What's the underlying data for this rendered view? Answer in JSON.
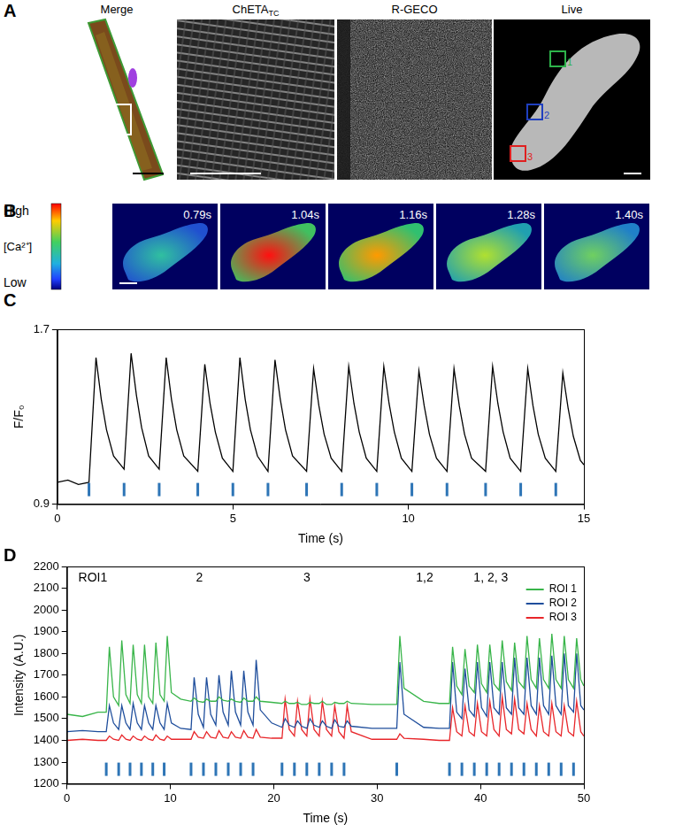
{
  "panels": [
    {
      "label": "A",
      "images": [
        {
          "title": "Merge"
        },
        {
          "title": "ChETA",
          "subscript": "TC"
        },
        {
          "title": "R-GECO"
        },
        {
          "title": "Live",
          "rois": [
            {
              "label": "1",
              "color": "#2db34a"
            },
            {
              "label": "2",
              "color": "#1f3fbf"
            },
            {
              "label": "3",
              "color": "#e02020"
            }
          ]
        }
      ]
    },
    {
      "label": "B",
      "colorbar": {
        "high": "High",
        "title": "[Ca²⁺]",
        "low": "Low"
      },
      "frames": [
        "0.79s",
        "1.04s",
        "1.16s",
        "1.28s",
        "1.40s"
      ]
    }
  ],
  "chart_data": [
    {
      "panel_label": "C",
      "type": "line",
      "x_label": "Time (s)",
      "y_label": "F/F₀",
      "color": "#000000",
      "x": [
        0,
        0.3,
        0.6,
        0.9,
        1.1,
        1.25,
        1.4,
        1.6,
        1.9,
        2.1,
        2.25,
        2.4,
        2.6,
        2.9,
        3.1,
        3.25,
        3.4,
        3.6,
        4.0,
        4.2,
        4.35,
        4.5,
        4.7,
        5.0,
        5.2,
        5.35,
        5.5,
        5.7,
        6.0,
        6.2,
        6.35,
        6.5,
        6.7,
        7.1,
        7.3,
        7.45,
        7.6,
        7.8,
        8.1,
        8.3,
        8.45,
        8.6,
        8.8,
        9.1,
        9.3,
        9.45,
        9.6,
        9.8,
        10.1,
        10.3,
        10.45,
        10.6,
        10.8,
        11.1,
        11.3,
        11.45,
        11.6,
        11.8,
        12.2,
        12.4,
        12.55,
        12.7,
        12.9,
        13.2,
        13.4,
        13.55,
        13.7,
        13.9,
        14.2,
        14.4,
        14.55,
        14.7,
        14.9,
        15.0
      ],
      "values": [
        1.0,
        1.01,
        0.99,
        1.0,
        1.57,
        1.38,
        1.24,
        1.12,
        1.06,
        1.59,
        1.4,
        1.25,
        1.12,
        1.06,
        1.57,
        1.38,
        1.24,
        1.12,
        1.05,
        1.54,
        1.36,
        1.23,
        1.11,
        1.05,
        1.57,
        1.38,
        1.24,
        1.12,
        1.05,
        1.56,
        1.38,
        1.24,
        1.12,
        1.05,
        1.52,
        1.35,
        1.22,
        1.11,
        1.05,
        1.53,
        1.36,
        1.23,
        1.11,
        1.05,
        1.53,
        1.36,
        1.23,
        1.11,
        1.05,
        1.51,
        1.35,
        1.22,
        1.11,
        1.05,
        1.52,
        1.35,
        1.22,
        1.11,
        1.05,
        1.53,
        1.36,
        1.23,
        1.11,
        1.05,
        1.52,
        1.35,
        1.22,
        1.11,
        1.05,
        1.5,
        1.34,
        1.21,
        1.1,
        1.08
      ],
      "xlim": [
        0,
        15
      ],
      "xticks": [
        0,
        5,
        10,
        15
      ],
      "ylim": [
        0.9,
        1.7
      ],
      "yticks": [
        0.9,
        1.7
      ],
      "grid": false,
      "stimuli": {
        "color": "#2e75b6",
        "values": [
          0.9,
          1.9,
          2.9,
          4.0,
          5.0,
          6.0,
          7.1,
          8.1,
          9.1,
          10.1,
          11.1,
          12.2,
          13.2,
          14.2
        ]
      }
    },
    {
      "panel_label": "D",
      "type": "line",
      "x_label": "Time (s)",
      "y_label": "Intensity (A.U.)",
      "x": [
        0,
        1.5,
        3.0,
        3.8,
        4.1,
        4.5,
        5.0,
        5.3,
        5.7,
        6.1,
        6.4,
        6.8,
        7.2,
        7.5,
        7.9,
        8.3,
        8.6,
        9.0,
        9.4,
        9.7,
        10.1,
        11.0,
        12.0,
        12.3,
        12.7,
        13.2,
        13.5,
        13.9,
        14.4,
        14.7,
        15.1,
        15.6,
        15.9,
        16.3,
        16.8,
        17.1,
        17.5,
        18.0,
        18.3,
        18.7,
        19.8,
        20.8,
        21.1,
        21.5,
        22.0,
        22.3,
        22.7,
        23.2,
        23.5,
        23.9,
        24.4,
        24.7,
        25.1,
        25.6,
        25.9,
        26.3,
        26.8,
        27.1,
        27.5,
        29.5,
        31.9,
        32.2,
        32.6,
        34.5,
        36.0,
        37.0,
        37.3,
        37.7,
        38.2,
        38.5,
        38.9,
        39.4,
        39.7,
        40.1,
        40.6,
        40.9,
        41.3,
        41.8,
        42.1,
        42.5,
        43.0,
        43.3,
        43.7,
        44.2,
        44.5,
        44.9,
        45.4,
        45.7,
        46.1,
        46.6,
        46.9,
        47.3,
        47.8,
        48.1,
        48.5,
        49.0,
        49.3,
        49.7,
        50
      ],
      "series": [
        {
          "name": "ROI 1",
          "color": "#39b54a",
          "values": [
            1520,
            1510,
            1530,
            1530,
            1830,
            1600,
            1560,
            1860,
            1610,
            1570,
            1840,
            1610,
            1570,
            1840,
            1600,
            1570,
            1850,
            1610,
            1580,
            1880,
            1620,
            1590,
            1580,
            1595,
            1580,
            1575,
            1590,
            1580,
            1580,
            1600,
            1585,
            1580,
            1590,
            1580,
            1575,
            1595,
            1580,
            1580,
            1600,
            1580,
            1575,
            1570,
            1580,
            1570,
            1570,
            1575,
            1565,
            1565,
            1575,
            1570,
            1570,
            1580,
            1565,
            1565,
            1575,
            1570,
            1570,
            1580,
            1570,
            1565,
            1565,
            1880,
            1640,
            1580,
            1570,
            1570,
            1830,
            1650,
            1610,
            1820,
            1650,
            1620,
            1840,
            1660,
            1620,
            1840,
            1660,
            1630,
            1860,
            1670,
            1630,
            1850,
            1670,
            1640,
            1880,
            1680,
            1640,
            1870,
            1680,
            1640,
            1890,
            1680,
            1640,
            1880,
            1680,
            1640,
            1870,
            1680,
            1650
          ]
        },
        {
          "name": "ROI 2",
          "color": "#1f4e9c",
          "values": [
            1440,
            1445,
            1440,
            1440,
            1560,
            1480,
            1450,
            1560,
            1480,
            1450,
            1570,
            1480,
            1450,
            1560,
            1480,
            1450,
            1560,
            1480,
            1450,
            1570,
            1480,
            1455,
            1450,
            1690,
            1520,
            1460,
            1690,
            1520,
            1470,
            1700,
            1530,
            1470,
            1720,
            1530,
            1470,
            1720,
            1530,
            1470,
            1770,
            1540,
            1480,
            1460,
            1500,
            1470,
            1460,
            1490,
            1465,
            1455,
            1500,
            1470,
            1460,
            1490,
            1465,
            1455,
            1495,
            1465,
            1460,
            1490,
            1465,
            1455,
            1455,
            1760,
            1520,
            1460,
            1455,
            1455,
            1760,
            1530,
            1500,
            1730,
            1540,
            1510,
            1760,
            1550,
            1510,
            1760,
            1550,
            1520,
            1760,
            1550,
            1520,
            1780,
            1550,
            1520,
            1780,
            1560,
            1520,
            1780,
            1560,
            1520,
            1790,
            1560,
            1520,
            1800,
            1560,
            1530,
            1800,
            1560,
            1540
          ]
        },
        {
          "name": "ROI 3",
          "color": "#e8262a",
          "values": [
            1400,
            1405,
            1400,
            1400,
            1420,
            1405,
            1400,
            1425,
            1405,
            1400,
            1420,
            1405,
            1400,
            1420,
            1405,
            1400,
            1425,
            1405,
            1400,
            1420,
            1405,
            1405,
            1405,
            1440,
            1415,
            1410,
            1440,
            1415,
            1410,
            1445,
            1415,
            1410,
            1440,
            1415,
            1410,
            1445,
            1415,
            1410,
            1450,
            1415,
            1410,
            1410,
            1590,
            1450,
            1420,
            1580,
            1450,
            1420,
            1590,
            1450,
            1420,
            1580,
            1450,
            1420,
            1560,
            1440,
            1410,
            1560,
            1440,
            1405,
            1405,
            1430,
            1410,
            1405,
            1400,
            1400,
            1550,
            1440,
            1420,
            1560,
            1440,
            1420,
            1570,
            1440,
            1420,
            1580,
            1450,
            1420,
            1600,
            1450,
            1430,
            1590,
            1450,
            1430,
            1570,
            1450,
            1420,
            1560,
            1440,
            1420,
            1570,
            1440,
            1420,
            1560,
            1440,
            1420,
            1580,
            1440,
            1420
          ]
        }
      ],
      "xlim": [
        0,
        50
      ],
      "xticks": [
        0,
        10,
        20,
        30,
        40,
        50
      ],
      "ylim": [
        1200,
        2200
      ],
      "yticks": [
        1200,
        1300,
        1400,
        1500,
        1600,
        1700,
        1800,
        1900,
        2000,
        2100,
        2200
      ],
      "grid": false,
      "legend": "upper right",
      "annotations": [
        {
          "text": "ROI1",
          "x": 2.5
        },
        {
          "text": "2",
          "x": 12.8
        },
        {
          "text": "3",
          "x": 23.2
        },
        {
          "text": "1,2",
          "x": 34.6
        },
        {
          "text": "1, 2, 3",
          "x": 41
        }
      ],
      "stimuli": {
        "color": "#2e75b6",
        "values": [
          3.8,
          5.0,
          6.1,
          7.2,
          8.3,
          9.4,
          12.0,
          13.2,
          14.4,
          15.6,
          16.8,
          18.0,
          20.8,
          22.0,
          23.2,
          24.4,
          25.6,
          26.8,
          31.9,
          37.0,
          38.2,
          39.4,
          40.6,
          41.8,
          43.0,
          44.2,
          45.4,
          46.6,
          47.8,
          49.0
        ]
      }
    }
  ]
}
